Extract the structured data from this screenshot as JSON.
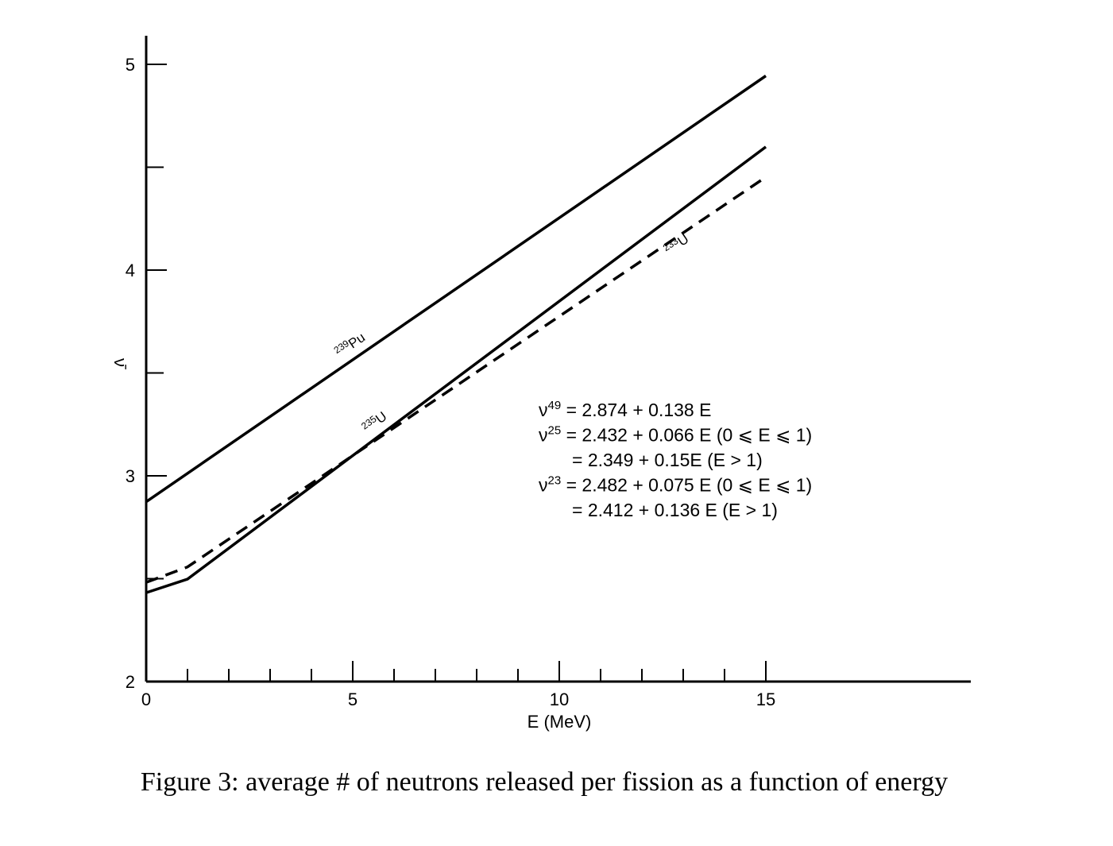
{
  "chart_data": {
    "type": "line",
    "xlabel": "E (MeV)",
    "ylabel": "ν̄",
    "xlim": [
      0,
      20
    ],
    "ylim": [
      2,
      5.15
    ],
    "x_ticks": [
      0,
      5,
      10,
      15
    ],
    "x_minor_ticks": [
      1,
      2,
      3,
      4,
      6,
      7,
      8,
      9,
      11,
      12,
      13,
      14
    ],
    "y_ticks": [
      2,
      3,
      4,
      5
    ],
    "y_minor_ticks": [
      2.5,
      3.5,
      4.5
    ],
    "grid": false,
    "series": [
      {
        "name_base": "Pu",
        "name_mass": "239",
        "style": "solid",
        "x": [
          0,
          15
        ],
        "y": [
          2.874,
          4.944
        ]
      },
      {
        "name_base": "U",
        "name_mass": "235",
        "style": "solid",
        "x": [
          0,
          1,
          15
        ],
        "y": [
          2.432,
          2.498,
          4.599
        ]
      },
      {
        "name_base": "U",
        "name_mass": "233",
        "style": "dashed",
        "x": [
          0,
          1,
          15
        ],
        "y": [
          2.482,
          2.557,
          4.452
        ]
      }
    ],
    "annotations": [
      {
        "sym": "ν",
        "sup": "49",
        "text": " = 2.874 + 0.138 E"
      },
      {
        "sym": "ν",
        "sup": "25",
        "text": " = 2.432 + 0.066 E (0 ⩽ E ⩽ 1)"
      },
      {
        "sym": "",
        "sup": "",
        "text": "= 2.349 + 0.15E (E > 1)"
      },
      {
        "sym": "ν",
        "sup": "23",
        "text": " = 2.482 + 0.075 E (0 ⩽ E ⩽ 1)"
      },
      {
        "sym": "",
        "sup": "",
        "text": "= 2.412 + 0.136 E (E > 1)"
      }
    ]
  },
  "caption": "Figure 3: average # of neutrons released per fission as a function of energy"
}
